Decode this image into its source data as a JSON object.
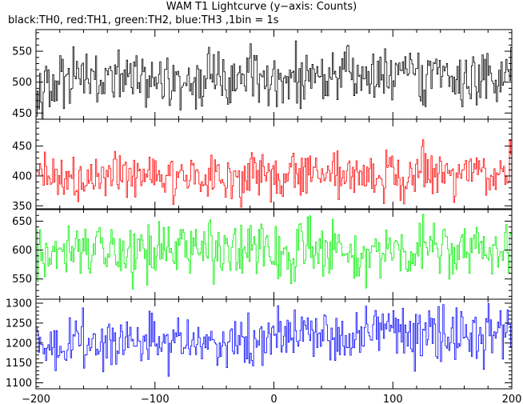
{
  "chart_data": {
    "type": "line",
    "title": "WAM T1 Lightcurve (y−axis: Counts)",
    "subtitle": "black:TH0, red:TH1, green:TH2, blue:TH3 ,1bin = 1s",
    "xlabel": "",
    "ylabel": "",
    "xlim": [
      -200,
      200
    ],
    "x_ticks": [
      -200,
      -100,
      0,
      100,
      200
    ],
    "x_tick_labels": [
      "−200",
      "−100",
      "0",
      "100",
      "200"
    ],
    "bin_seconds": 1,
    "grid": false,
    "panels": [
      {
        "name": "TH0",
        "color": "#000000",
        "ylim": [
          440,
          585
        ],
        "y_ticks": [
          450,
          500,
          550
        ],
        "mean": 505,
        "noise": 23,
        "trend": 10,
        "min": 438,
        "max": 578
      },
      {
        "name": "TH1",
        "color": "#ff0000",
        "ylim": [
          345,
          495
        ],
        "y_ticks": [
          350,
          400,
          450
        ],
        "mean": 402,
        "noise": 20,
        "trend": 8,
        "min": 345,
        "max": 490
      },
      {
        "name": "TH2",
        "color": "#00ee00",
        "ylim": [
          515,
          670
        ],
        "y_ticks": [
          550,
          600,
          650
        ],
        "mean": 598,
        "noise": 25,
        "trend": 14,
        "min": 520,
        "max": 662
      },
      {
        "name": "TH3",
        "color": "#0000ff",
        "ylim": [
          1085,
          1310
        ],
        "y_ticks": [
          1100,
          1150,
          1200,
          1250,
          1300
        ],
        "mean": 1210,
        "noise": 33,
        "trend": 30,
        "min": 1090,
        "max": 1310
      }
    ]
  }
}
